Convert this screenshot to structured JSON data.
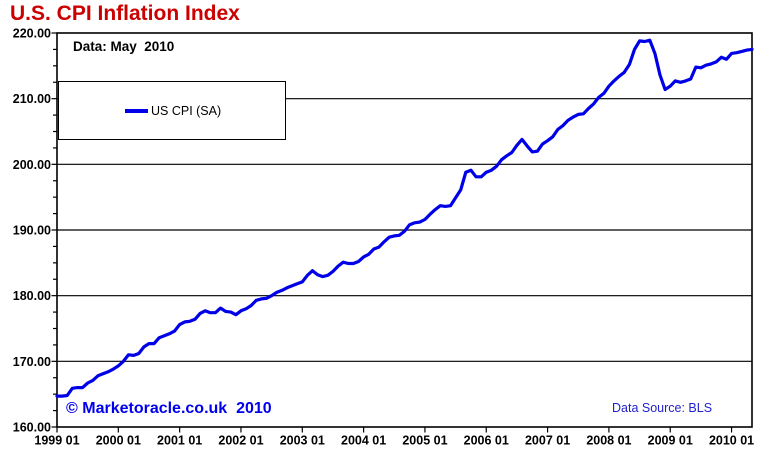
{
  "title": "U.S. CPI Inflation Index",
  "data_note": "Data: May  2010",
  "watermark": "© Marketoracle.co.uk  2010",
  "data_source": "Data Source: BLS",
  "legend": {
    "label": "US CPI (SA)"
  },
  "colors": {
    "title": "#CC0000",
    "line": "#0000E8",
    "watermark": "#0000EE",
    "source": "#2222CC",
    "axis": "#000000",
    "grid": "#000000",
    "background": "#FFFFFF"
  },
  "chart_data": {
    "type": "line",
    "title": "U.S. CPI Inflation Index",
    "x_start": "1999 01",
    "x_end": "2010 05",
    "x_tick_labels": [
      "1999 01",
      "2000 01",
      "2001 01",
      "2002 01",
      "2003 01",
      "2004 01",
      "2005 01",
      "2006 01",
      "2007 01",
      "2008 01",
      "2009 01",
      "2010 01"
    ],
    "x_tick_interval_months": 12,
    "y_tick_labels": [
      "220.00",
      "210.00",
      "200.00",
      "190.00",
      "180.00",
      "170.00",
      "160.00"
    ],
    "ylim": [
      160,
      220
    ],
    "y_major_step": 10,
    "y_minor_step": 2.5,
    "grid": "horizontal-major",
    "legend_position": "top-left-box",
    "series": [
      {
        "name": "US CPI (SA)",
        "values": [
          164.7,
          164.7,
          164.8,
          165.9,
          166.0,
          166.0,
          166.7,
          167.1,
          167.8,
          168.1,
          168.4,
          168.8,
          169.3,
          170.0,
          171.0,
          170.9,
          171.2,
          172.2,
          172.7,
          172.7,
          173.6,
          173.9,
          174.2,
          174.6,
          175.6,
          176.0,
          176.1,
          176.4,
          177.3,
          177.7,
          177.4,
          177.4,
          178.1,
          177.6,
          177.5,
          177.1,
          177.7,
          178.0,
          178.5,
          179.3,
          179.5,
          179.6,
          180.0,
          180.5,
          180.8,
          181.2,
          181.5,
          181.8,
          182.1,
          183.1,
          183.8,
          183.2,
          182.9,
          183.1,
          183.7,
          184.5,
          185.1,
          184.9,
          184.9,
          185.2,
          185.9,
          186.3,
          187.1,
          187.4,
          188.2,
          188.9,
          189.1,
          189.2,
          189.8,
          190.8,
          191.1,
          191.2,
          191.6,
          192.4,
          193.1,
          193.7,
          193.6,
          193.7,
          194.9,
          196.1,
          198.8,
          199.1,
          198.1,
          198.1,
          198.8,
          199.1,
          199.7,
          200.7,
          201.3,
          201.8,
          202.9,
          203.8,
          202.8,
          201.9,
          202.0,
          203.1,
          203.6,
          204.2,
          205.3,
          205.9,
          206.7,
          207.2,
          207.6,
          207.7,
          208.5,
          209.2,
          210.2,
          210.8,
          211.9,
          212.7,
          213.4,
          214.0,
          215.2,
          217.5,
          218.8,
          218.7,
          218.9,
          216.9,
          213.6,
          211.4,
          211.9,
          212.7,
          212.5,
          212.7,
          213.0,
          214.8,
          214.7,
          215.1,
          215.3,
          215.6,
          216.3,
          216.0,
          216.9,
          217.0,
          217.2,
          217.4,
          217.5
        ]
      }
    ]
  }
}
